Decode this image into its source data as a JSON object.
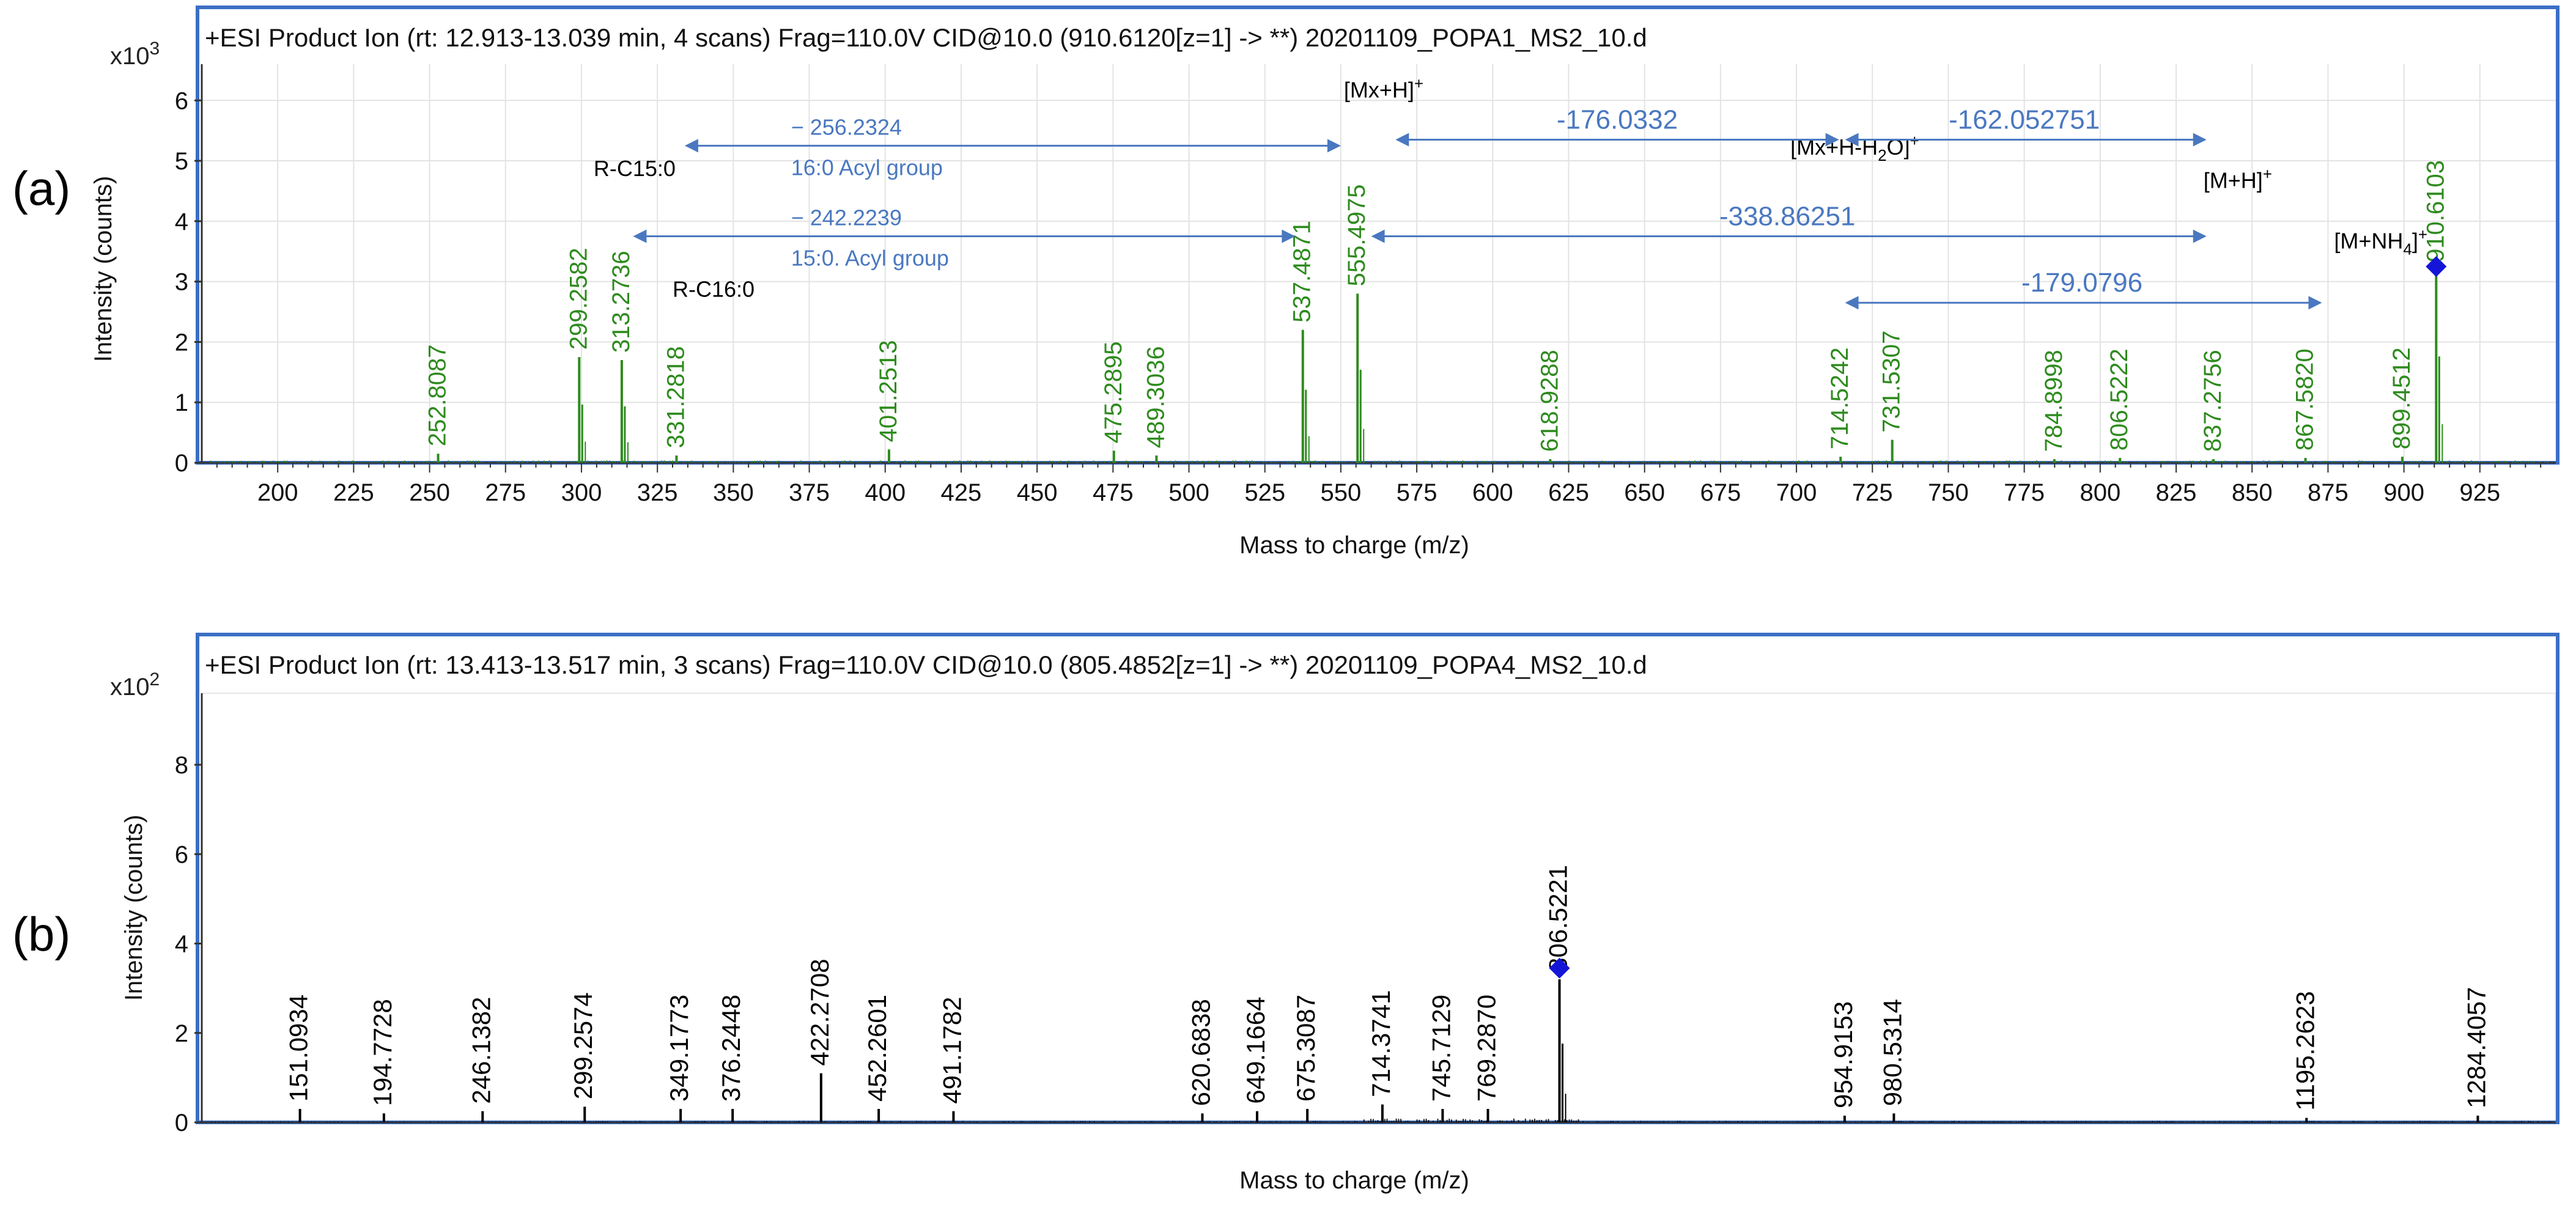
{
  "colors": {
    "frame": "#3b6fc4",
    "peaks_a": "#2e8b1e",
    "labels_a": "#2e8b1e",
    "peaks_b": "#000000",
    "labels_b": "#000000",
    "annotation": "#4a78c0",
    "marker": "#1515d8",
    "grid": "#e3e3e3",
    "axis": "#333333"
  },
  "chart_data": [
    {
      "panel": "(a)",
      "type": "bar",
      "title": "+ESI Product Ion (rt: 12.913-13.039 min, 4 scans) Frag=110.0V CID@10.0 (910.6120[z=1] -> **) 20201109_POPA1_MS2_10.d",
      "scale_label": "x10",
      "scale_exp": "3",
      "xlabel": "Mass to charge (m/z)",
      "ylabel": "Intensity (counts)",
      "xlim": [
        175,
        950
      ],
      "ylim": [
        0,
        6.6
      ],
      "xticks": [
        200,
        225,
        250,
        275,
        300,
        325,
        350,
        375,
        400,
        425,
        450,
        475,
        500,
        525,
        550,
        575,
        600,
        625,
        650,
        675,
        700,
        725,
        750,
        775,
        800,
        825,
        850,
        875,
        900,
        925
      ],
      "yticks": [
        0,
        1,
        2,
        3,
        4,
        5,
        6
      ],
      "grid": true,
      "peaks": [
        {
          "mz": 252.8087,
          "intensity": 0.15,
          "label": "252.8087"
        },
        {
          "mz": 299.2582,
          "intensity": 1.75,
          "label": "299.2582"
        },
        {
          "mz": 313.2736,
          "intensity": 1.7,
          "label": "313.2736"
        },
        {
          "mz": 331.2818,
          "intensity": 0.12,
          "label": "331.2818"
        },
        {
          "mz": 401.2513,
          "intensity": 0.22,
          "label": "401.2513"
        },
        {
          "mz": 475.2895,
          "intensity": 0.2,
          "label": "475.2895"
        },
        {
          "mz": 489.3036,
          "intensity": 0.12,
          "label": "489.3036"
        },
        {
          "mz": 537.4871,
          "intensity": 2.2,
          "label": "537.4871"
        },
        {
          "mz": 555.4975,
          "intensity": 2.8,
          "label": "555.4975"
        },
        {
          "mz": 618.9288,
          "intensity": 0.06,
          "label": "618.9288"
        },
        {
          "mz": 714.5242,
          "intensity": 0.1,
          "label": "714.5242"
        },
        {
          "mz": 731.5307,
          "intensity": 0.38,
          "label": "731.5307"
        },
        {
          "mz": 784.8998,
          "intensity": 0.06,
          "label": "784.8998"
        },
        {
          "mz": 806.5222,
          "intensity": 0.08,
          "label": "806.5222"
        },
        {
          "mz": 837.2756,
          "intensity": 0.06,
          "label": "837.2756"
        },
        {
          "mz": 867.582,
          "intensity": 0.08,
          "label": "867.5820"
        },
        {
          "mz": 899.4512,
          "intensity": 0.1,
          "label": "899.4512"
        },
        {
          "mz": 910.6103,
          "intensity": 3.2,
          "label": "910.6103"
        }
      ],
      "precursor_marker": {
        "mz": 910.6103,
        "intensity": 3.25
      },
      "text_annotations": [
        {
          "text": "[Mx+H-H",
          "sub": "2",
          "after": "O]",
          "sup": "+",
          "mz": 698,
          "y": 5.1
        },
        {
          "text": "[Mx+H]",
          "sub": "",
          "after": "",
          "sup": "+",
          "mz": 551,
          "y": 6.05
        },
        {
          "text": "[M+H]",
          "sub": "",
          "after": "",
          "sup": "+",
          "mz": 834,
          "y": 4.55
        },
        {
          "text": "[M+NH",
          "sub": "4",
          "after": "]",
          "sup": "+",
          "mz": 877,
          "y": 3.55
        },
        {
          "text": "R-C15:0",
          "sub": "",
          "after": "",
          "sup": "",
          "mz": 304,
          "y": 4.75
        },
        {
          "text": "R-C16:0",
          "sub": "",
          "after": "",
          "sup": "",
          "mz": 330,
          "y": 2.75
        }
      ],
      "arrows": [
        {
          "from": 334,
          "to": 550,
          "y": 5.25,
          "label": "− 256.2324",
          "label2": "16:0 Acyl group",
          "label_mz": 369
        },
        {
          "from": 317,
          "to": 535,
          "y": 3.75,
          "label": "− 242.2239",
          "label2": "15:0. Acyl group",
          "label_mz": 369
        },
        {
          "from": 568,
          "to": 714,
          "y": 5.35,
          "label": "-176.0332",
          "label2": "",
          "label_mz": 641
        },
        {
          "from": 716,
          "to": 835,
          "y": 5.35,
          "label": "-162.052751",
          "label2": "",
          "label_mz": 775
        },
        {
          "from": 560,
          "to": 835,
          "y": 3.75,
          "label": "-338.86251",
          "label2": "",
          "label_mz": 697
        },
        {
          "from": 716,
          "to": 873,
          "y": 2.65,
          "label": "-179.0796",
          "label2": "",
          "label_mz": 794
        }
      ]
    },
    {
      "panel": "(b)",
      "type": "bar",
      "title": "+ESI Product Ion (rt: 13.413-13.517 min, 3 scans) Frag=110.0V CID@10.0 (805.4852[z=1] -> **) 20201109_POPA4_MS2_10.d",
      "scale_label": "x10",
      "scale_exp": "2",
      "xlabel": "Mass to charge (m/z)",
      "ylabel": "Intensity (counts)",
      "xlim": [
        100,
        1325
      ],
      "ylim": [
        0,
        9.6
      ],
      "yticks": [
        0,
        2,
        4,
        6,
        8
      ],
      "grid": false,
      "peaks": [
        {
          "mz": 151.0934,
          "intensity": 0.3,
          "label": "151.0934"
        },
        {
          "mz": 194.7728,
          "intensity": 0.2,
          "label": "194.7728"
        },
        {
          "mz": 246.1382,
          "intensity": 0.25,
          "label": "246.1382"
        },
        {
          "mz": 299.2574,
          "intensity": 0.35,
          "label": "299.2574"
        },
        {
          "mz": 349.1773,
          "intensity": 0.3,
          "label": "349.1773"
        },
        {
          "mz": 376.2448,
          "intensity": 0.3,
          "label": "376.2448"
        },
        {
          "mz": 422.2708,
          "intensity": 1.1,
          "label": "422.2708"
        },
        {
          "mz": 452.2601,
          "intensity": 0.3,
          "label": "452.2601"
        },
        {
          "mz": 491.1782,
          "intensity": 0.25,
          "label": "491.1782"
        },
        {
          "mz": 620.6838,
          "intensity": 0.2,
          "label": "620.6838"
        },
        {
          "mz": 649.1664,
          "intensity": 0.25,
          "label": "649.1664"
        },
        {
          "mz": 675.3087,
          "intensity": 0.3,
          "label": "675.3087"
        },
        {
          "mz": 714.3741,
          "intensity": 0.4,
          "label": "714.3741"
        },
        {
          "mz": 745.7129,
          "intensity": 0.3,
          "label": "745.7129"
        },
        {
          "mz": 769.287,
          "intensity": 0.3,
          "label": "769.2870"
        },
        {
          "mz": 806.5221,
          "intensity": 3.2,
          "label": "806.5221"
        },
        {
          "mz": 954.9153,
          "intensity": 0.15,
          "label": "954.9153"
        },
        {
          "mz": 980.5314,
          "intensity": 0.2,
          "label": "980.5314"
        },
        {
          "mz": 1195.2623,
          "intensity": 0.1,
          "label": "1195.2623"
        },
        {
          "mz": 1284.4057,
          "intensity": 0.15,
          "label": "1284.4057"
        }
      ],
      "precursor_marker": {
        "mz": 806.5221,
        "intensity": 3.45
      }
    }
  ]
}
